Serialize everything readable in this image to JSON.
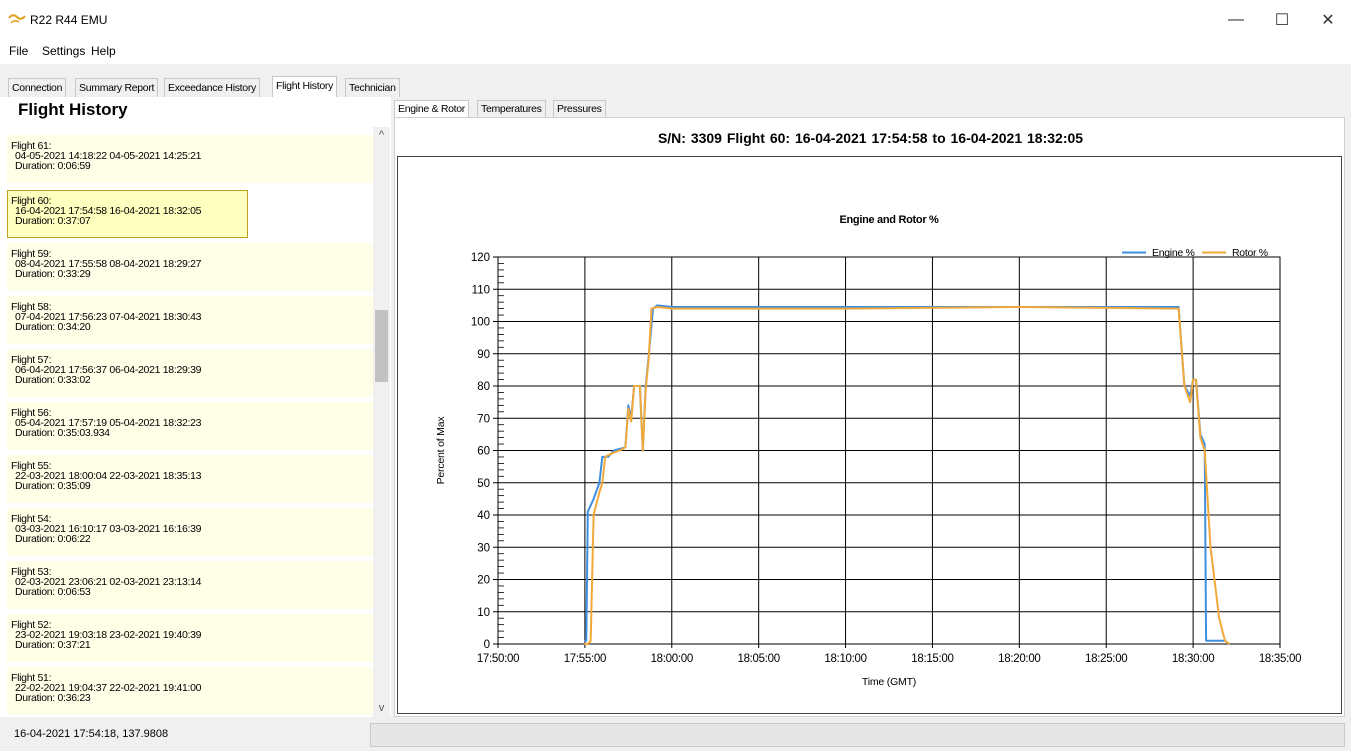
{
  "window": {
    "title": "R22 R44 EMU",
    "minimize": "—",
    "maximize": "☐",
    "close": "✕"
  },
  "menu": [
    "File",
    "Settings",
    "Help"
  ],
  "tabs": [
    "Connection",
    "Summary Report",
    "Exceedance History",
    "Flight History",
    "Technician"
  ],
  "active_tab": "Flight History",
  "left_panel": {
    "heading": "Flight History",
    "flights": [
      {
        "label": "Flight 61:",
        "times": "04-05-2021 14:18:22  04-05-2021 14:25:21",
        "duration": "Duration: 0:06:59"
      },
      {
        "label": "Flight 60:",
        "times": "16-04-2021 17:54:58  16-04-2021 18:32:05",
        "duration": "Duration: 0:37:07"
      },
      {
        "label": "Flight 59:",
        "times": "08-04-2021 17:55:58  08-04-2021 18:29:27",
        "duration": "Duration: 0:33:29"
      },
      {
        "label": "Flight 58:",
        "times": "07-04-2021 17:56:23  07-04-2021 18:30:43",
        "duration": "Duration: 0:34:20"
      },
      {
        "label": "Flight 57:",
        "times": "06-04-2021 17:56:37  06-04-2021 18:29:39",
        "duration": "Duration: 0:33:02"
      },
      {
        "label": "Flight 56:",
        "times": "05-04-2021 17:57:19  05-04-2021 18:32:23",
        "duration": "Duration: 0:35:03.934"
      },
      {
        "label": "Flight 55:",
        "times": "22-03-2021 18:00:04  22-03-2021 18:35:13",
        "duration": "Duration: 0:35:09"
      },
      {
        "label": "Flight 54:",
        "times": "03-03-2021 16:10:17  03-03-2021 16:16:39",
        "duration": "Duration: 0:06:22"
      },
      {
        "label": "Flight 53:",
        "times": "02-03-2021 23:06:21  02-03-2021 23:13:14",
        "duration": "Duration: 0:06:53"
      },
      {
        "label": "Flight 52:",
        "times": "23-02-2021 19:03:18  23-02-2021 19:40:39",
        "duration": "Duration: 0:37:21"
      },
      {
        "label": "Flight 51:",
        "times": "22-02-2021 19:04:37  22-02-2021 19:41:00",
        "duration": "Duration: 0:36:23"
      }
    ],
    "selected_index": 1,
    "scroll_up": "^",
    "scroll_down": "v"
  },
  "subtabs": [
    "Engine & Rotor",
    "Temperatures",
    "Pressures"
  ],
  "active_subtab": "Engine & Rotor",
  "info_header": "S/N: 3309   Flight 60:  16-04-2021 17:54:58  to  16-04-2021 18:32:05",
  "status": {
    "text": "16-04-2021 17:54:18, 137.9808"
  },
  "chart_data": {
    "type": "line",
    "title": "Engine and Rotor %",
    "xlabel": "Time (GMT)",
    "ylabel": "Percent of Max",
    "xlim": [
      "17:50:00",
      "18:35:00"
    ],
    "ylim": [
      0,
      120
    ],
    "x_ticks": [
      "17:50:00",
      "17:55:00",
      "18:00:00",
      "18:05:00",
      "18:10:00",
      "18:15:00",
      "18:20:00",
      "18:25:00",
      "18:30:00",
      "18:35:00"
    ],
    "y_ticks": [
      0,
      10,
      20,
      30,
      40,
      50,
      60,
      70,
      80,
      90,
      100,
      110,
      120
    ],
    "legend_position": "top-right",
    "grid": true,
    "series": [
      {
        "name": "Engine %",
        "color": "#3d8fe0",
        "points": [
          [
            "17:54:58",
            1
          ],
          [
            "17:55:05",
            1
          ],
          [
            "17:55:10",
            41
          ],
          [
            "17:55:30",
            45
          ],
          [
            "17:55:50",
            50
          ],
          [
            "17:56:00",
            58
          ],
          [
            "17:56:20",
            58
          ],
          [
            "17:56:40",
            60
          ],
          [
            "17:57:20",
            61
          ],
          [
            "17:57:30",
            74
          ],
          [
            "17:57:40",
            70
          ],
          [
            "17:57:50",
            80
          ],
          [
            "17:58:10",
            80
          ],
          [
            "17:58:20",
            60
          ],
          [
            "17:58:30",
            80
          ],
          [
            "17:58:40",
            89
          ],
          [
            "17:58:55",
            104
          ],
          [
            "17:59:10",
            105
          ],
          [
            "18:00:00",
            104.5
          ],
          [
            "18:10:00",
            104.5
          ],
          [
            "18:20:00",
            104.5
          ],
          [
            "18:29:10",
            104.5
          ],
          [
            "18:29:30",
            80
          ],
          [
            "18:29:50",
            77
          ],
          [
            "18:30:00",
            82
          ],
          [
            "18:30:10",
            82
          ],
          [
            "18:30:25",
            65
          ],
          [
            "18:30:40",
            62
          ],
          [
            "18:30:45",
            1
          ],
          [
            "18:31:55",
            1
          ]
        ]
      },
      {
        "name": "Rotor %",
        "color": "#f2a93b",
        "points": [
          [
            "17:54:58",
            0
          ],
          [
            "17:55:10",
            0
          ],
          [
            "17:55:20",
            1
          ],
          [
            "17:55:30",
            40
          ],
          [
            "17:55:50",
            47
          ],
          [
            "17:56:00",
            50
          ],
          [
            "17:56:10",
            58
          ],
          [
            "17:56:30",
            59
          ],
          [
            "17:57:00",
            60
          ],
          [
            "17:57:20",
            61
          ],
          [
            "17:57:30",
            73
          ],
          [
            "17:57:40",
            69
          ],
          [
            "17:57:50",
            80
          ],
          [
            "17:58:10",
            80
          ],
          [
            "17:58:20",
            60
          ],
          [
            "17:58:30",
            79
          ],
          [
            "17:58:40",
            88
          ],
          [
            "17:58:50",
            104
          ],
          [
            "17:59:10",
            104.5
          ],
          [
            "18:00:00",
            104
          ],
          [
            "18:10:00",
            104
          ],
          [
            "18:20:00",
            104.5
          ],
          [
            "18:29:10",
            104
          ],
          [
            "18:29:30",
            80
          ],
          [
            "18:29:50",
            75
          ],
          [
            "18:30:00",
            82
          ],
          [
            "18:30:10",
            82
          ],
          [
            "18:30:25",
            64
          ],
          [
            "18:30:40",
            60
          ],
          [
            "18:31:00",
            30
          ],
          [
            "18:31:30",
            8
          ],
          [
            "18:31:50",
            1
          ],
          [
            "18:32:05",
            0
          ]
        ]
      }
    ]
  }
}
